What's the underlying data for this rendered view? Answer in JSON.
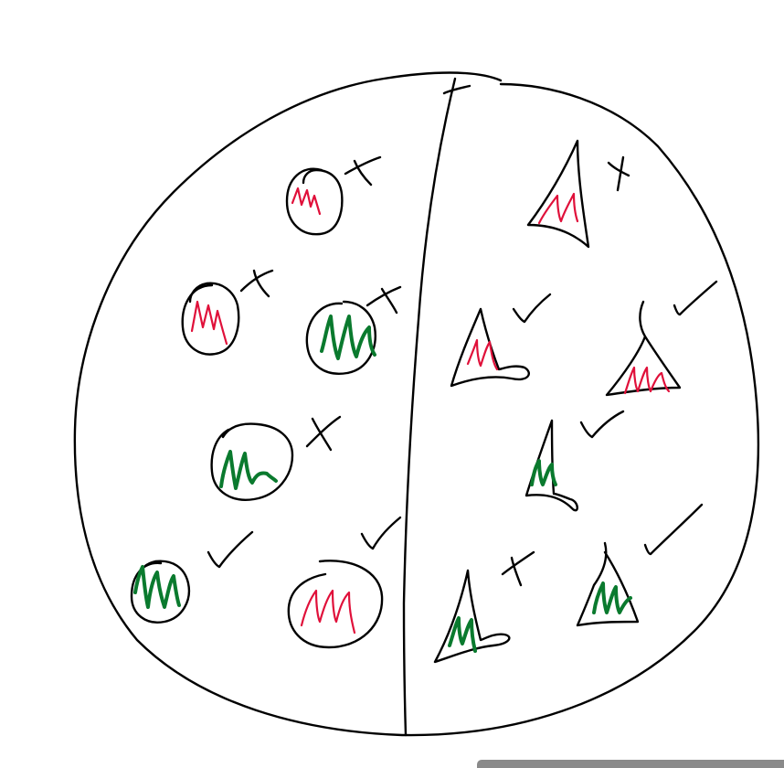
{
  "colors": {
    "ink": "#000000",
    "red": "#e0103a",
    "green": "#0a7a2e",
    "scrollbar": "#8a8a8a"
  },
  "left_half": {
    "shape": "circle",
    "items": [
      {
        "fill": "red",
        "mark": "cross"
      },
      {
        "fill": "red",
        "mark": "cross"
      },
      {
        "fill": "green",
        "mark": "cross"
      },
      {
        "fill": "green",
        "mark": "cross"
      },
      {
        "fill": "green",
        "mark": "check"
      },
      {
        "fill": "red",
        "mark": "check"
      }
    ]
  },
  "right_half": {
    "shape": "triangle",
    "items": [
      {
        "fill": "red",
        "mark": "cross"
      },
      {
        "fill": "red",
        "mark": "check"
      },
      {
        "fill": "red",
        "mark": "check"
      },
      {
        "fill": "green",
        "mark": "check"
      },
      {
        "fill": "green",
        "mark": "cross"
      },
      {
        "fill": "green",
        "mark": "check"
      }
    ]
  }
}
